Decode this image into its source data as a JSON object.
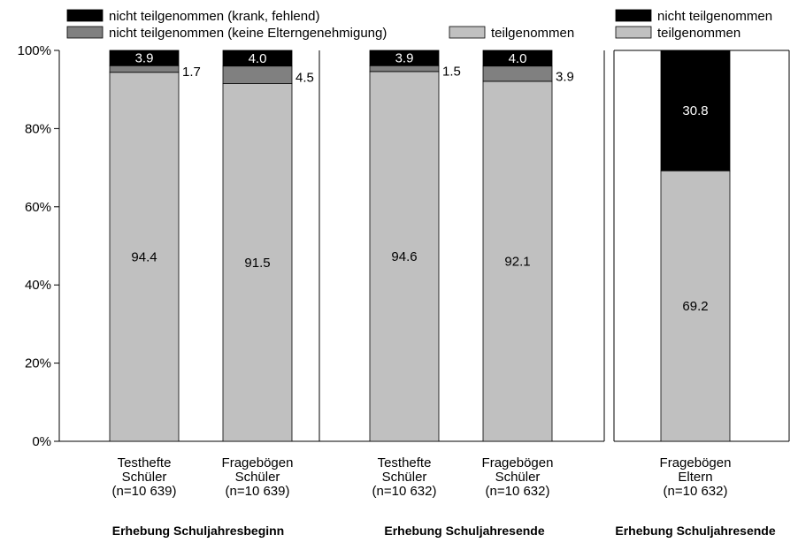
{
  "colors": {
    "participated": "#c0c0c0",
    "no_permission": "#808080",
    "absent": "#000000",
    "axis": "#000000"
  },
  "legend_left": [
    {
      "key": "absent",
      "label": "nicht teilgenommen (krank, fehlend)"
    },
    {
      "key": "no_permission",
      "label": "nicht teilgenommen (keine Elterngenehmigung)"
    },
    {
      "key": "participated",
      "label": "teilgenommen"
    }
  ],
  "legend_right": [
    {
      "key": "absent",
      "label": "nicht teilgenommen"
    },
    {
      "key": "participated",
      "label": "teilgenommen"
    }
  ],
  "chart_data": [
    {
      "type": "bar",
      "stacked": true,
      "ylim": [
        0,
        100
      ],
      "yticks": [
        "0%",
        "20%",
        "40%",
        "60%",
        "80%",
        "100%"
      ],
      "groups": [
        "Erhebung Schuljahresbeginn",
        "Erhebung Schuljahresende"
      ],
      "categories": [
        [
          "Testhefte",
          "Schüler",
          "(n=10 639)"
        ],
        [
          "Fragebögen",
          "Schüler",
          "(n=10 639)"
        ],
        [
          "Testhefte",
          "Schüler",
          "(n=10 632)"
        ],
        [
          "Fragebögen",
          "Schüler",
          "(n=10 632)"
        ]
      ],
      "category_group": [
        0,
        0,
        1,
        1
      ],
      "series": [
        {
          "key": "participated",
          "name": "teilgenommen",
          "values": [
            94.4,
            91.5,
            94.6,
            92.1
          ],
          "labels": [
            "94.4",
            "91.5",
            "94.6",
            "92.1"
          ]
        },
        {
          "key": "no_permission",
          "name": "nicht teilgenommen (keine Elterngenehmigung)",
          "values": [
            1.7,
            4.5,
            1.5,
            3.9
          ],
          "labels": [
            "1.7",
            "4.5",
            "1.5",
            "3.9"
          ]
        },
        {
          "key": "absent",
          "name": "nicht teilgenommen (krank, fehlend)",
          "values": [
            3.9,
            4.0,
            3.9,
            4.0
          ],
          "labels": [
            "3.9",
            "4.0",
            "3.9",
            "4.0"
          ]
        }
      ]
    },
    {
      "type": "bar",
      "stacked": true,
      "ylim": [
        0,
        100
      ],
      "groups": [
        "Erhebung Schuljahresende"
      ],
      "categories": [
        [
          "Fragebögen",
          "Eltern",
          "(n=10 632)"
        ]
      ],
      "category_group": [
        0
      ],
      "series": [
        {
          "key": "participated",
          "name": "teilgenommen",
          "values": [
            69.2
          ],
          "labels": [
            "69.2"
          ]
        },
        {
          "key": "absent",
          "name": "nicht teilgenommen",
          "values": [
            30.8
          ],
          "labels": [
            "30.8"
          ]
        }
      ]
    }
  ]
}
